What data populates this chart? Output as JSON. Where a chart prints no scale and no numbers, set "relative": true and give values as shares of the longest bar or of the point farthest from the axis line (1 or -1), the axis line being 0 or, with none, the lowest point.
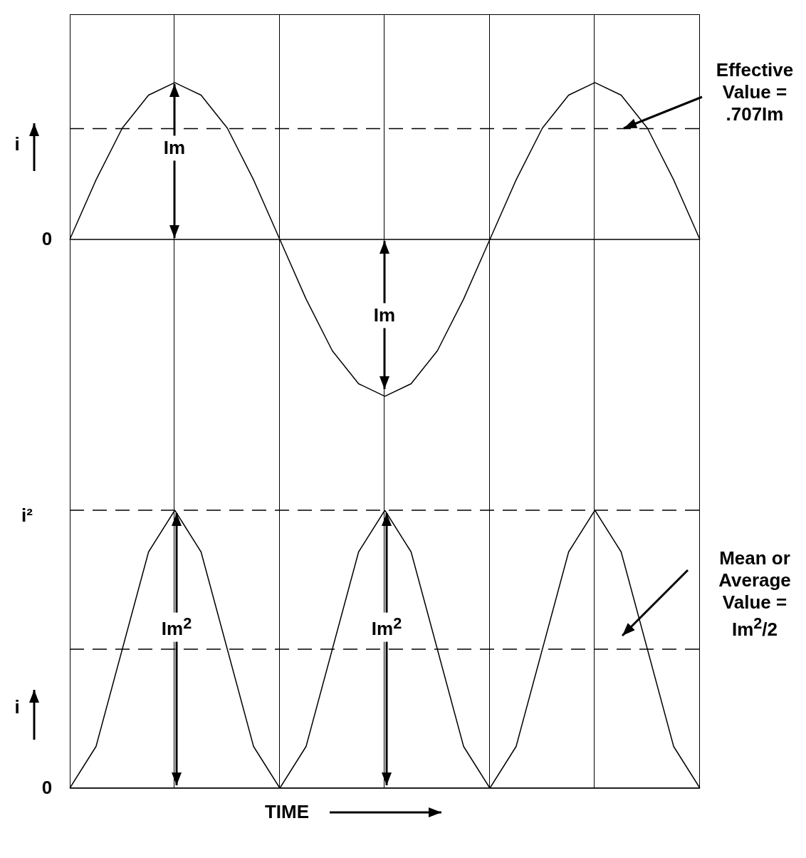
{
  "chart_data": [
    {
      "type": "line",
      "relative": true,
      "ylabel": "i",
      "categories": [
        null,
        null,
        null,
        null,
        null,
        null,
        null,
        null,
        null,
        null,
        null,
        null,
        null,
        null,
        null,
        null,
        null,
        null,
        null,
        null,
        null,
        null,
        null,
        null,
        null
      ],
      "marker": "none",
      "series": [
        {
          "color": "#000000",
          "values": [
            0,
            0.38,
            0.71,
            0.92,
            1,
            0.92,
            0.71,
            0.38,
            0,
            -0.38,
            -0.71,
            -0.92,
            -1,
            -0.92,
            -0.71,
            -0.38,
            0,
            0.38,
            0.71,
            0.92,
            1,
            0.92,
            0.71,
            0.38,
            0
          ]
        }
      ],
      "ref_lines": [
        {
          "axis": "y",
          "value": 0.707,
          "label": "Effective Value = .707Im",
          "line_style": "dashed"
        }
      ],
      "annotations": [
        "0",
        "Im",
        "Im"
      ]
    },
    {
      "type": "line",
      "relative": true,
      "ylabel": "i",
      "xlabel": "TIME",
      "categories": [
        null,
        null,
        null,
        null,
        null,
        null,
        null,
        null,
        null,
        null,
        null,
        null,
        null,
        null,
        null,
        null,
        null,
        null,
        null,
        null,
        null,
        null,
        null,
        null,
        null
      ],
      "marker": "none",
      "series": [
        {
          "color": "#000000",
          "values": [
            0,
            0.15,
            0.5,
            0.85,
            1,
            0.85,
            0.5,
            0.15,
            0,
            0.15,
            0.5,
            0.85,
            1,
            0.85,
            0.5,
            0.15,
            0,
            0.15,
            0.5,
            0.85,
            1,
            0.85,
            0.5,
            0.15,
            0
          ]
        }
      ],
      "ref_lines": [
        {
          "axis": "y",
          "value": 1,
          "label": "i²",
          "line_style": "dashed"
        },
        {
          "axis": "y",
          "value": 0.5,
          "label": "Mean or Average Value = Im$^{2}$/2",
          "line_style": "dashed"
        }
      ],
      "annotations": [
        "0",
        "Im$^{2}$",
        "Im$^{2}$"
      ]
    }
  ]
}
